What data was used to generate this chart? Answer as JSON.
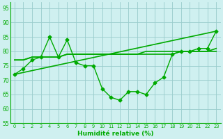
{
  "xlabel": "Humidité relative (%)",
  "background_color": "#cff0f0",
  "grid_color": "#99cccc",
  "line_color": "#00aa00",
  "xlim": [
    -0.5,
    23.5
  ],
  "ylim": [
    55,
    97
  ],
  "yticks": [
    55,
    60,
    65,
    70,
    75,
    80,
    85,
    90,
    95
  ],
  "xticks": [
    0,
    1,
    2,
    3,
    4,
    5,
    6,
    7,
    8,
    9,
    10,
    11,
    12,
    13,
    14,
    15,
    16,
    17,
    18,
    19,
    20,
    21,
    22,
    23
  ],
  "series": [
    {
      "x": [
        0,
        1,
        2,
        3,
        4,
        5,
        6,
        7,
        8,
        9,
        10,
        11,
        12,
        13,
        14,
        15,
        16,
        17,
        18,
        19,
        20,
        21,
        22,
        23
      ],
      "y": [
        72,
        74,
        77,
        78,
        85,
        78,
        84,
        76,
        75,
        75,
        67,
        64,
        63,
        66,
        66,
        65,
        69,
        71,
        79,
        80,
        80,
        81,
        81,
        87
      ],
      "marker": "D",
      "markersize": 2.5,
      "linewidth": 1.0
    },
    {
      "x": [
        0,
        1,
        2,
        3,
        4,
        5,
        6,
        7,
        8,
        9,
        10,
        11,
        12,
        13,
        14,
        15,
        16,
        17,
        18,
        19,
        20,
        21,
        22,
        23
      ],
      "y": [
        77,
        77,
        78,
        78,
        78,
        78,
        79,
        79,
        79,
        79,
        79,
        79,
        79,
        79,
        79,
        79,
        79,
        79,
        79,
        80,
        80,
        80,
        80,
        80
      ],
      "marker": null,
      "markersize": 0,
      "linewidth": 1.2
    },
    {
      "x": [
        0,
        1,
        2,
        3,
        4,
        5,
        6,
        7,
        8,
        9,
        10,
        11,
        12,
        13,
        14,
        15,
        16,
        17,
        18,
        19,
        20,
        21,
        22,
        23
      ],
      "y": [
        77,
        77,
        78,
        78,
        78,
        78,
        79,
        79,
        79,
        79,
        79,
        79,
        79,
        79,
        79,
        80,
        80,
        80,
        80,
        80,
        80,
        80,
        80,
        81
      ],
      "marker": null,
      "markersize": 0,
      "linewidth": 1.2
    },
    {
      "x": [
        0,
        23
      ],
      "y": [
        72,
        87
      ],
      "marker": null,
      "markersize": 0,
      "linewidth": 1.2
    }
  ]
}
